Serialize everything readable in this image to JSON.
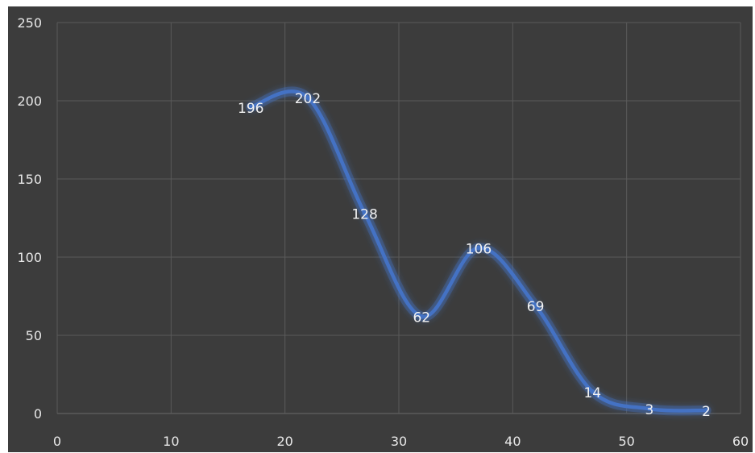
{
  "chart_data": {
    "type": "line",
    "smooth": true,
    "title": "",
    "xlabel": "",
    "ylabel": "",
    "xlim": [
      0,
      60
    ],
    "ylim": [
      0,
      250
    ],
    "x_ticks": [
      0,
      10,
      20,
      30,
      40,
      50,
      60
    ],
    "y_ticks": [
      0,
      50,
      100,
      150,
      200,
      250
    ],
    "grid": true,
    "legend": "none",
    "series": [
      {
        "x": [
          17,
          22,
          27,
          32,
          37,
          42,
          47,
          52,
          57
        ],
        "values": [
          196,
          202,
          128,
          62,
          106,
          69,
          14,
          3,
          2
        ],
        "labels": [
          "196",
          "202",
          "128",
          "62",
          "106",
          "69",
          "14",
          "3",
          "2"
        ],
        "color": "#4472c4"
      }
    ],
    "background_color": "#3c3c3c",
    "grid_color": "#5a5a5a",
    "text_color": "#e8e8e8"
  }
}
